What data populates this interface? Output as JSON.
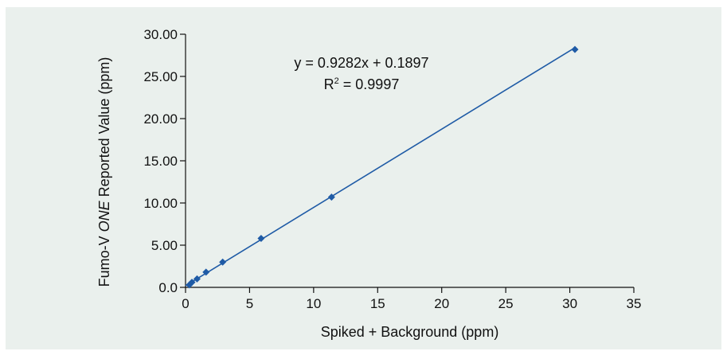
{
  "chart_data": {
    "type": "scatter",
    "xlabel": "Spiked + Background (ppm)",
    "ylabel": {
      "prefix": "Fumo-V ",
      "italic": "ONE",
      "suffix": " Reported Value (ppm)"
    },
    "xlim": [
      0,
      35
    ],
    "ylim": [
      0,
      30
    ],
    "x_ticks": [
      0,
      5,
      10,
      15,
      20,
      25,
      30,
      35
    ],
    "x_tick_labels": [
      "0",
      "5",
      "10",
      "15",
      "20",
      "25",
      "30",
      "35"
    ],
    "y_ticks": [
      0,
      5,
      10,
      15,
      20,
      25,
      30
    ],
    "y_tick_labels": [
      "0.0",
      "5.00",
      "10.00",
      "15.00",
      "20.00",
      "25.00",
      "30.00"
    ],
    "grid": false,
    "series": [
      {
        "points": [
          {
            "x": 0.3,
            "y": 0.3
          },
          {
            "x": 0.5,
            "y": 0.6
          },
          {
            "x": 0.9,
            "y": 1.0
          },
          {
            "x": 1.6,
            "y": 1.8
          },
          {
            "x": 2.9,
            "y": 3.0
          },
          {
            "x": 5.9,
            "y": 5.8
          },
          {
            "x": 11.4,
            "y": 10.7
          },
          {
            "x": 30.4,
            "y": 28.2
          }
        ],
        "color": "#1f5ba6"
      }
    ],
    "trendline": {
      "slope": 0.9282,
      "intercept": 0.1897,
      "x_range": [
        0,
        30.4
      ],
      "color": "#1f5ba6"
    },
    "annotations": {
      "equation": "y = 0.9282x + 0.1897",
      "r2_prefix": "R",
      "r2_sup": "2",
      "r2_value": " = 0.9997"
    }
  }
}
